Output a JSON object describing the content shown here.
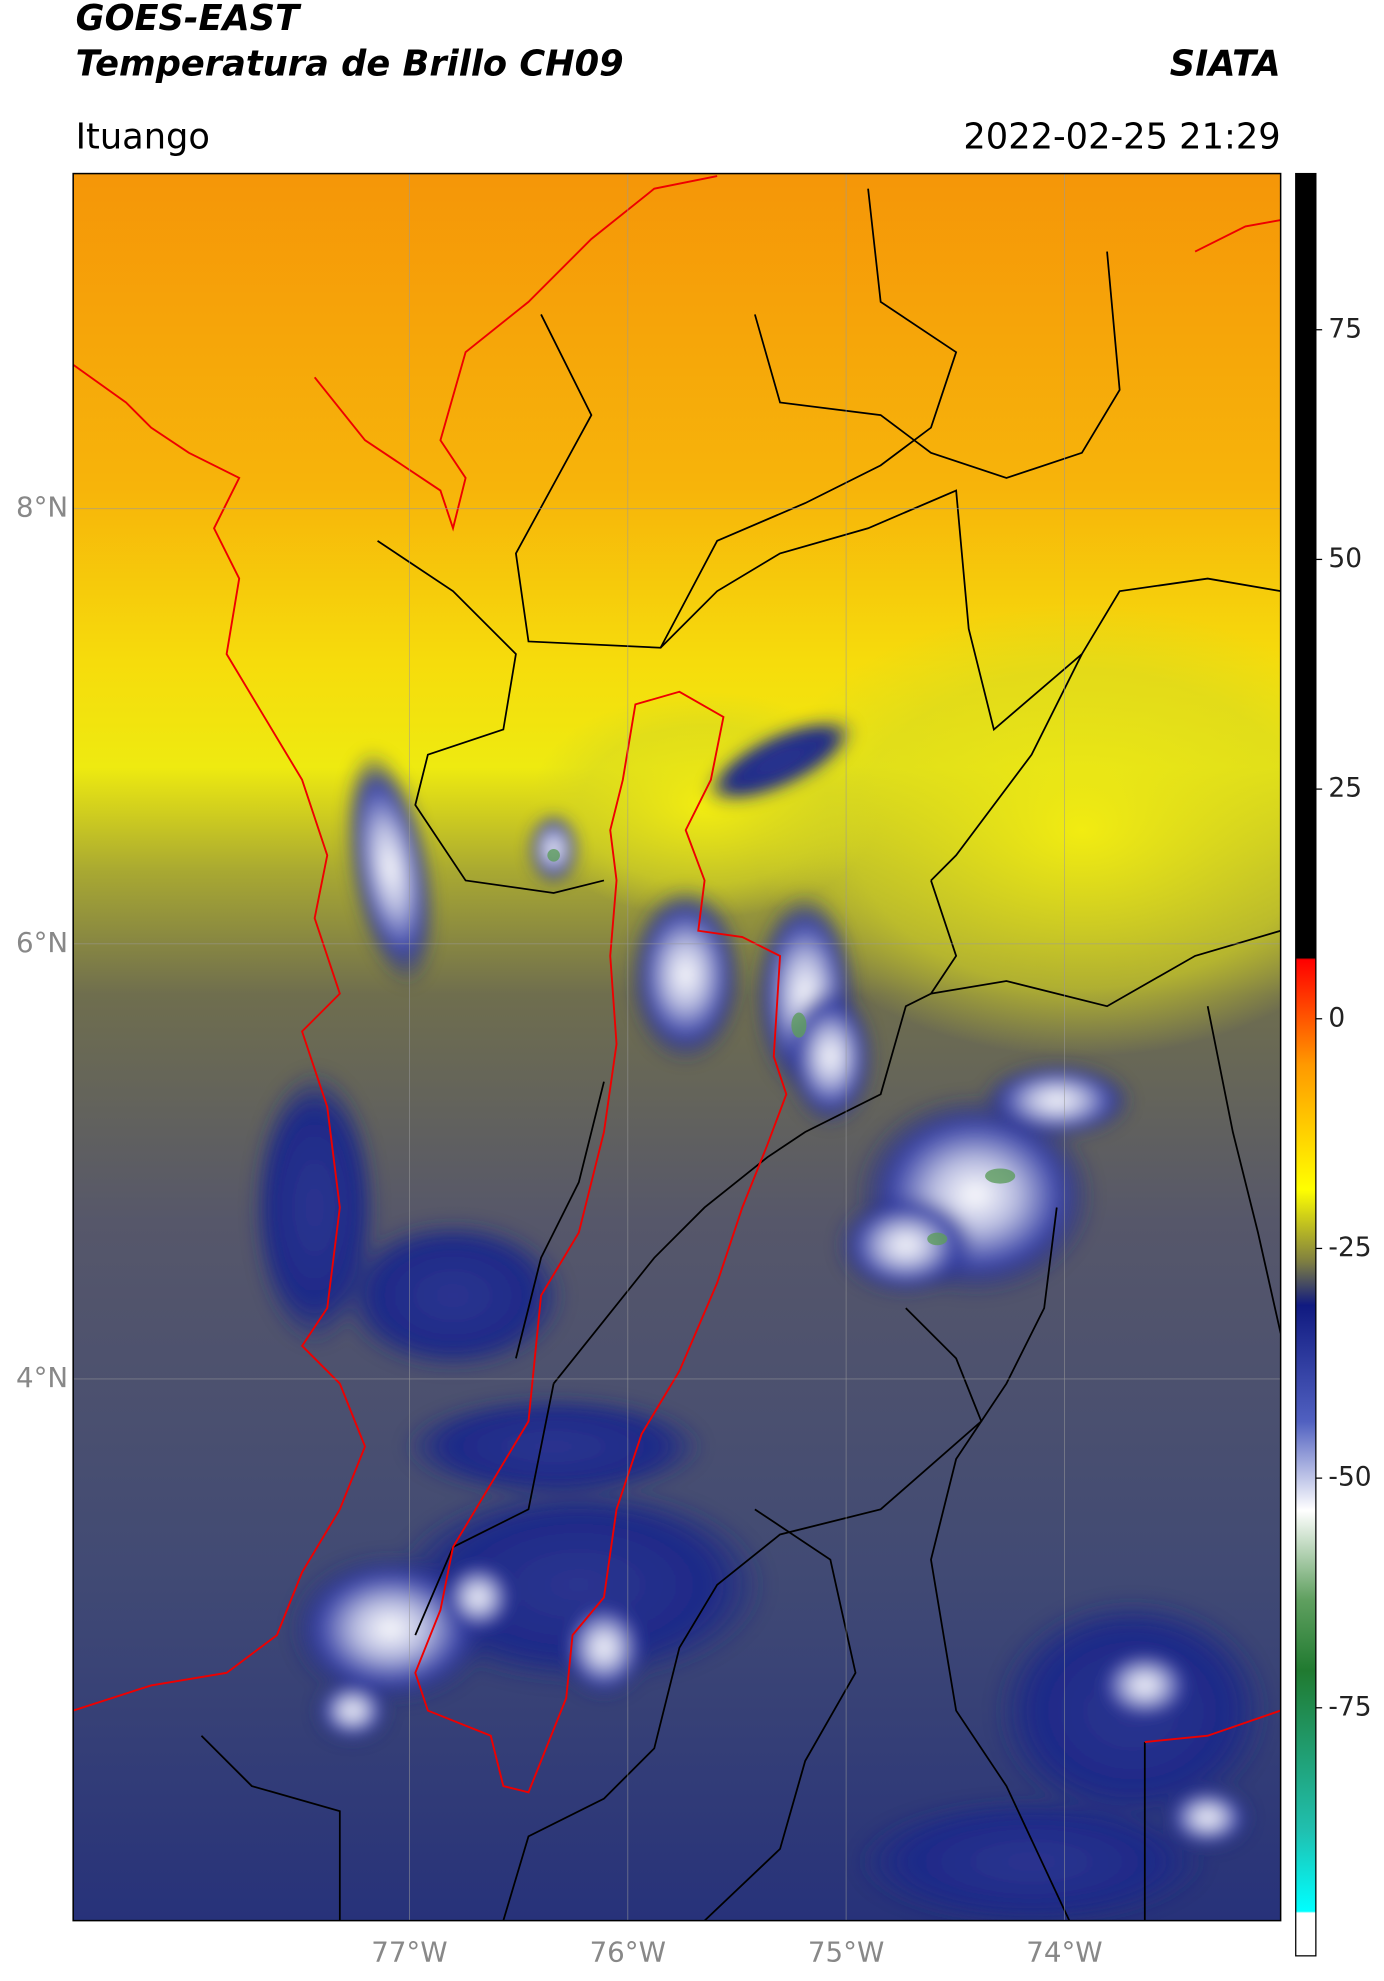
{
  "header": {
    "title": "GOES-EAST",
    "subtitle": "Temperatura de Brillo CH09",
    "source": "SIATA",
    "location": "Ituango",
    "datetime": "2022-02-25 21:29"
  },
  "map": {
    "xlim": [
      -78.54,
      -73.01
    ],
    "ylim": [
      1.51,
      9.54
    ],
    "xticks": [
      {
        "value": -77,
        "label": "77°W"
      },
      {
        "value": -76,
        "label": "76°W"
      },
      {
        "value": -75,
        "label": "75°W"
      },
      {
        "value": -74,
        "label": "74°W"
      }
    ],
    "yticks": [
      {
        "value": 8,
        "label": "8°N"
      },
      {
        "value": 6,
        "label": "6°N"
      },
      {
        "value": 4,
        "label": "4°N"
      }
    ],
    "grid": true
  },
  "colorbar": {
    "lim": [
      -102,
      92
    ],
    "ticks": [
      -75,
      -50,
      -25,
      0,
      25,
      50,
      75
    ]
  }
}
